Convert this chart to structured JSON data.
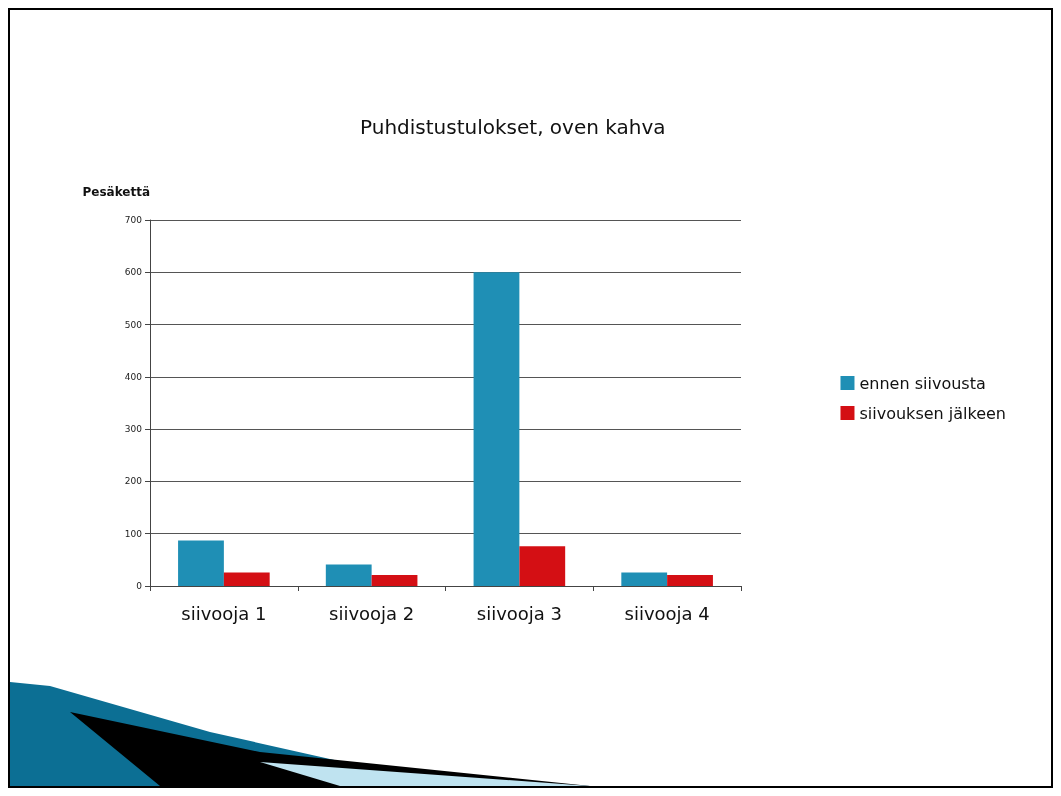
{
  "chart_data": {
    "type": "bar",
    "title": "Puhdistustulokset, oven kahva",
    "ylabel": "Pesäkettä",
    "categories": [
      "siivooja 1",
      "siivooja 2",
      "siivooja 3",
      "siivooja 4"
    ],
    "series": [
      {
        "name": "ennen siivousta",
        "color": "#1f8fb5",
        "values": [
          87,
          41,
          600,
          26
        ]
      },
      {
        "name": "siivouksen jälkeen",
        "color": "#d40f14",
        "values": [
          26,
          21,
          76,
          21
        ]
      }
    ],
    "ylim": [
      0,
      700
    ],
    "yticks": [
      0,
      100,
      200,
      300,
      400,
      500,
      600,
      700
    ],
    "grid": "y",
    "legend": "right"
  }
}
